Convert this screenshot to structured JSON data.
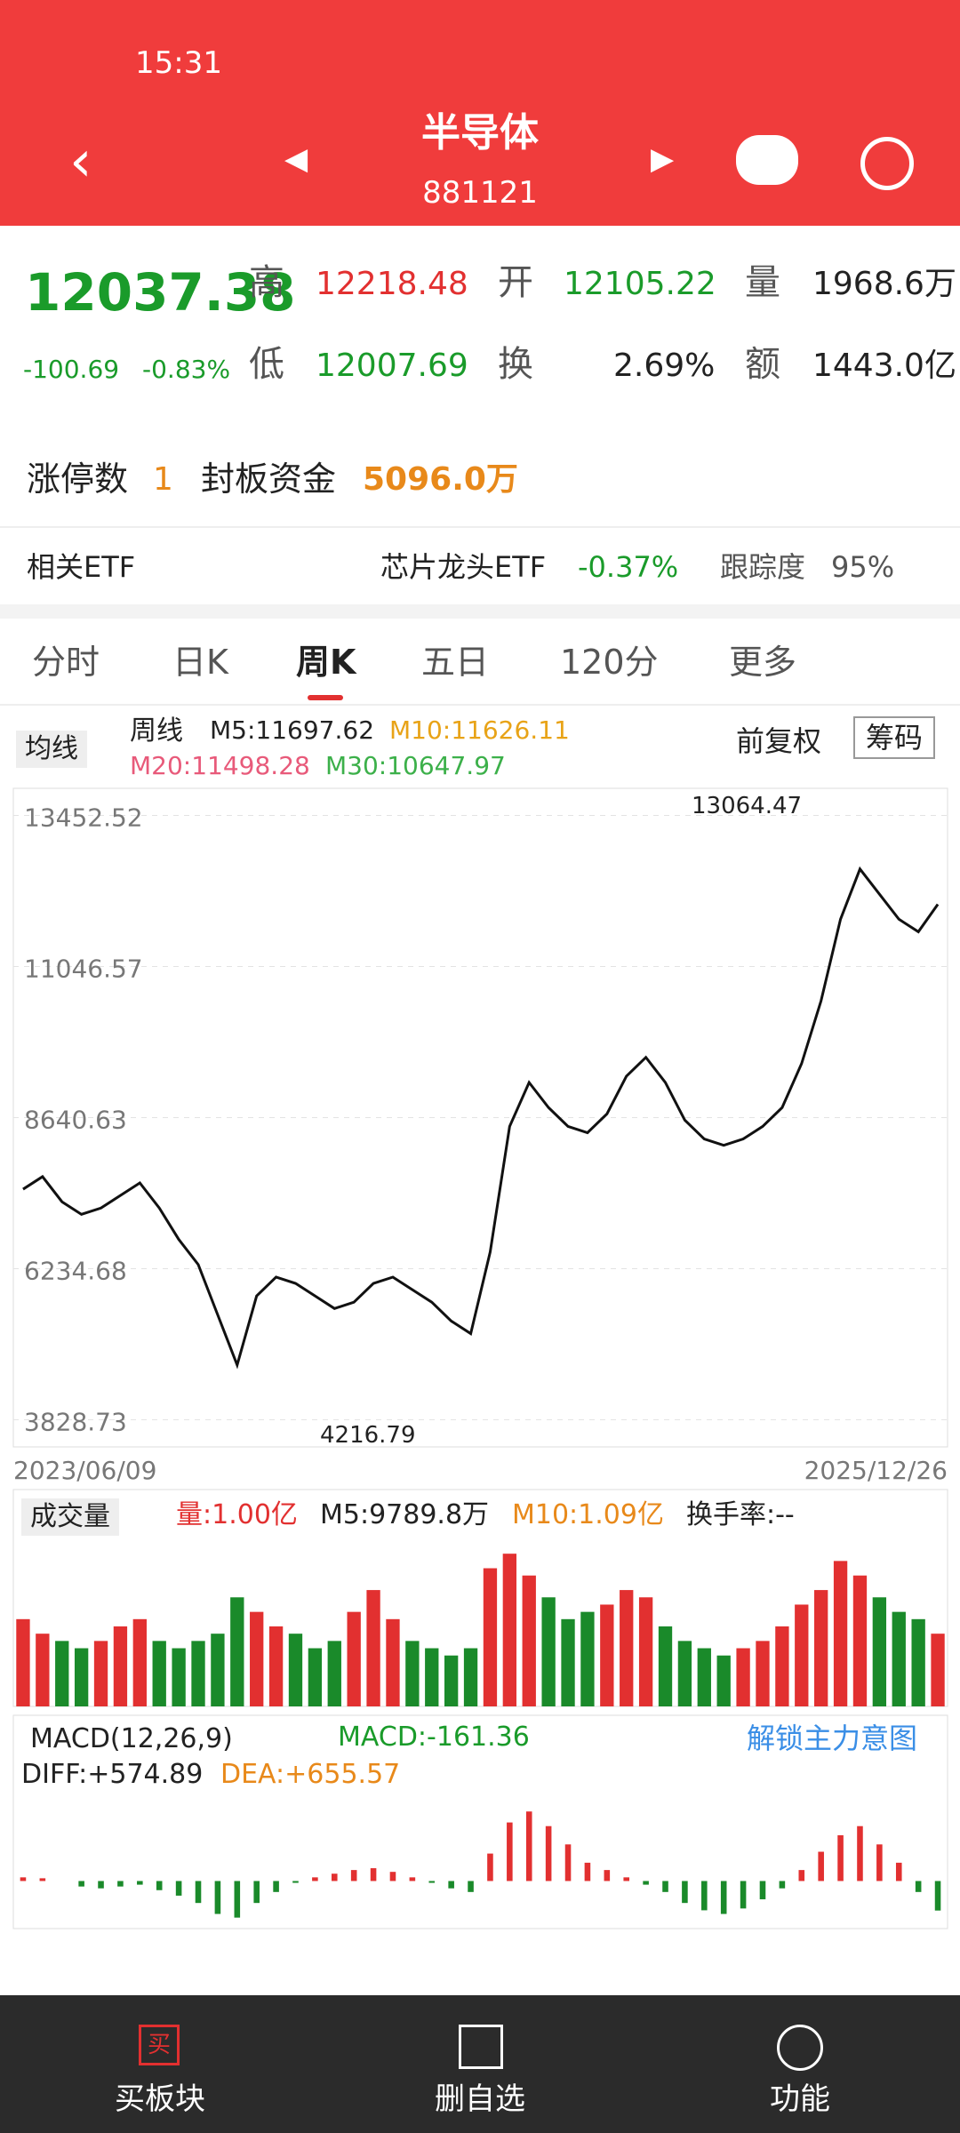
{
  "status": {
    "time": "15:31"
  },
  "header": {
    "title": "半导体",
    "code": "881121"
  },
  "quote": {
    "price": "12037.38",
    "change": "-100.69",
    "pct": "-0.83%",
    "fields": [
      {
        "label": "高",
        "value": "12218.48"
      },
      {
        "label": "开",
        "value": "12105.22"
      },
      {
        "label": "量",
        "value": "1968.6万"
      },
      {
        "label": "低",
        "value": "12007.69"
      },
      {
        "label": "换",
        "value": "2.69%"
      },
      {
        "label": "额",
        "value": "1443.0亿"
      }
    ]
  },
  "limit": {
    "label": "涨停数",
    "count": "1",
    "fund_label": "封板资金",
    "fund": "5096.0万"
  },
  "etf": {
    "label": "相关ETF",
    "name": "芯片龙头ETF",
    "change": "-0.37%",
    "track_label": "跟踪度",
    "track": "95%"
  },
  "tabs": [
    "分时",
    "日K",
    "周K",
    "五日",
    "120分",
    "更多"
  ],
  "kline": {
    "ma_toggle": "均线",
    "period": "周线",
    "ma": [
      "M5:11697.62",
      "M10:11626.11",
      "M20:11498.28",
      "M30:10647.97"
    ],
    "adjust": "前复权",
    "chips": "筹码",
    "high_note": "13064.47",
    "low_note": "4216.79"
  },
  "volume": {
    "title": "成交量",
    "labels": [
      "量:1.00亿",
      "M5:9789.8万",
      "M10:1.09亿",
      "换手率:--"
    ]
  },
  "macd": {
    "title": "MACD(12,26,9)",
    "value": "MACD:-161.36",
    "diff": "DIFF:+574.89",
    "dea": "DEA:+655.57",
    "unlock": "解锁主力意图"
  },
  "nav": {
    "buy_icon": "买",
    "items": [
      "买板块",
      "删自选",
      "功能"
    ]
  },
  "chart_data": [
    {
      "type": "line",
      "color": "#111111",
      "categories": [
        "2023/06/09",
        null,
        null,
        null,
        null,
        null,
        null,
        null,
        null,
        null,
        null,
        null,
        null,
        null,
        null,
        null,
        null,
        null,
        null,
        null,
        null,
        null,
        null,
        null,
        null,
        null,
        null,
        null,
        null,
        null,
        null,
        null,
        null,
        null,
        null,
        null,
        null,
        null,
        null,
        null,
        null,
        null,
        null,
        null,
        null,
        null,
        null,
        "2025/12/26"
      ],
      "values": [
        7500,
        7700,
        7300,
        7100,
        7200,
        7400,
        7600,
        7200,
        6700,
        6300,
        5500,
        4700,
        5800,
        6100,
        6000,
        5800,
        5600,
        5700,
        6000,
        6100,
        5900,
        5700,
        5400,
        5200,
        6500,
        8500,
        9200,
        8800,
        8500,
        8400,
        8700,
        9300,
        9600,
        9200,
        8600,
        8300,
        8200,
        8300,
        8500,
        8800,
        9500,
        10500,
        11800,
        12600,
        12200,
        11800,
        11600,
        12037
      ],
      "ylim": [
        3396,
        13885
      ],
      "yticks": [
        13452.52,
        11046.57,
        8640.63,
        6234.68,
        3828.73
      ],
      "grid": true
    },
    {
      "type": "bar",
      "values": [
        1.2,
        1.0,
        0.9,
        0.8,
        0.9,
        1.1,
        1.2,
        0.9,
        0.8,
        0.9,
        1.0,
        1.5,
        1.3,
        1.1,
        1.0,
        0.8,
        0.9,
        1.3,
        1.6,
        1.2,
        0.9,
        0.8,
        0.7,
        0.8,
        1.9,
        2.1,
        1.8,
        1.5,
        1.2,
        1.3,
        1.4,
        1.6,
        1.5,
        1.1,
        0.9,
        0.8,
        0.7,
        0.8,
        0.9,
        1.1,
        1.4,
        1.6,
        2.0,
        1.8,
        1.5,
        1.3,
        1.2,
        1.0
      ],
      "ylim": [
        0,
        2.2
      ]
    },
    {
      "type": "bar",
      "values": [
        20,
        15,
        0,
        -30,
        -40,
        -30,
        -20,
        -50,
        -80,
        -120,
        -180,
        -200,
        -120,
        -60,
        -10,
        20,
        40,
        60,
        70,
        50,
        20,
        -10,
        -40,
        -60,
        150,
        320,
        380,
        300,
        200,
        100,
        60,
        20,
        -20,
        -60,
        -120,
        -160,
        -180,
        -150,
        -100,
        -40,
        60,
        160,
        250,
        300,
        200,
        100,
        -60,
        -161.36
      ],
      "ylim": [
        -260,
        420
      ]
    }
  ]
}
